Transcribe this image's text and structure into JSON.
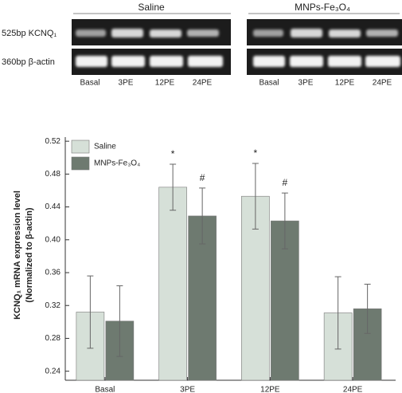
{
  "gel": {
    "groups": [
      "Saline",
      "MNPs-Fe₃O₄"
    ],
    "rows": [
      "525bp KCNQ₁",
      "360bp β-actin"
    ],
    "lanes": [
      "Basal",
      "3PE",
      "12PE",
      "24PE"
    ]
  },
  "chart_data": {
    "type": "bar",
    "y_label": [
      "KCNQ₁ mRNA expression level",
      "(Normalized to β-actin)"
    ],
    "categories": [
      "Basal",
      "3PE",
      "12PE",
      "24PE"
    ],
    "series": [
      {
        "name": "Saline",
        "color": "#d6e0d8",
        "values": [
          0.312,
          0.464,
          0.453,
          0.311
        ],
        "errors": [
          0.044,
          0.028,
          0.04,
          0.044
        ],
        "markers": [
          null,
          "*",
          "*",
          null
        ]
      },
      {
        "name": "MNPs-Fe₃O₄",
        "color": "#6e7a70",
        "values": [
          0.301,
          0.429,
          0.423,
          0.316
        ],
        "errors": [
          0.043,
          0.034,
          0.034,
          0.03
        ],
        "markers": [
          null,
          "#",
          "#",
          null
        ]
      }
    ],
    "ylim": [
      0.229,
      0.525
    ],
    "yticks": [
      0.24,
      0.28,
      0.32,
      0.36,
      {
        "value": 0.4,
        "label": "0.40"
      },
      0.44,
      0.48,
      0.52
    ],
    "legend": "upper left"
  }
}
